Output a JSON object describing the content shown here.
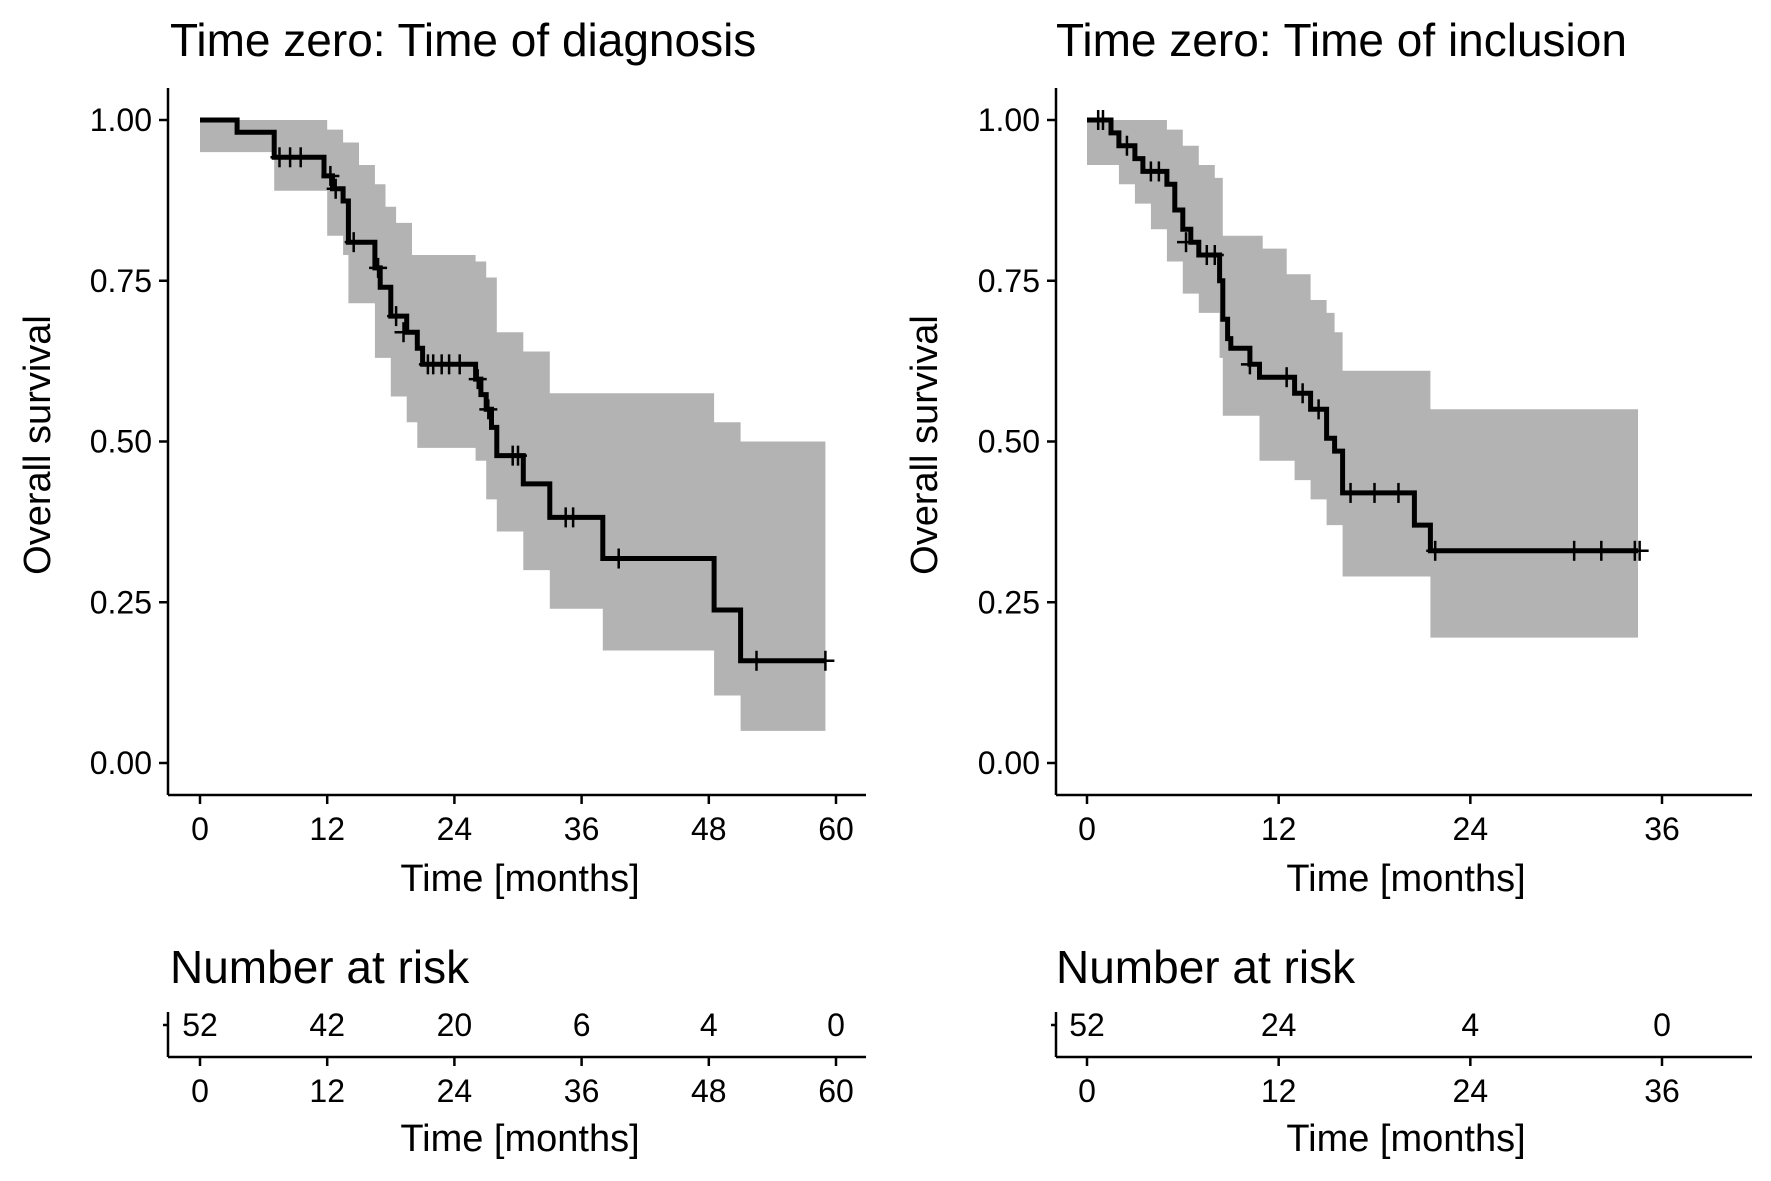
{
  "chart_data": [
    {
      "type": "line",
      "subtype": "kaplan-meier",
      "title": "Time zero: Time of diagnosis",
      "xlabel": "Time [months]",
      "ylabel": "Overall survival",
      "xlim": [
        0,
        62
      ],
      "ylim": [
        0,
        1.0
      ],
      "xticks": [
        0,
        12,
        24,
        36,
        48,
        60
      ],
      "yticks": [
        "0.00",
        "0.25",
        "0.50",
        "0.75",
        "1.00"
      ],
      "grid": false,
      "colors": {
        "line": "#000000",
        "ci": "#b3b3b3"
      },
      "steps": [
        [
          0,
          1.0
        ],
        [
          3.5,
          0.981
        ],
        [
          7,
          0.942
        ],
        [
          11.7,
          0.913
        ],
        [
          12.5,
          0.893
        ],
        [
          13.5,
          0.874
        ],
        [
          14,
          0.81
        ],
        [
          16.5,
          0.77
        ],
        [
          17,
          0.74
        ],
        [
          18,
          0.695
        ],
        [
          19.5,
          0.67
        ],
        [
          20.5,
          0.645
        ],
        [
          21,
          0.62
        ],
        [
          26,
          0.597
        ],
        [
          26.5,
          0.573
        ],
        [
          27,
          0.55
        ],
        [
          27.5,
          0.522
        ],
        [
          28,
          0.478
        ],
        [
          30.5,
          0.434
        ],
        [
          33,
          0.382
        ],
        [
          38,
          0.318
        ],
        [
          48.5,
          0.238
        ],
        [
          51,
          0.159
        ],
        [
          59,
          0.159
        ]
      ],
      "ci_upper": [
        [
          0,
          1.0
        ],
        [
          7,
          1.0
        ],
        [
          12,
          0.985
        ],
        [
          13.5,
          0.965
        ],
        [
          15,
          0.93
        ],
        [
          16.5,
          0.9
        ],
        [
          17.5,
          0.865
        ],
        [
          18.5,
          0.84
        ],
        [
          20,
          0.79
        ],
        [
          26,
          0.78
        ],
        [
          27,
          0.755
        ],
        [
          28,
          0.67
        ],
        [
          30.5,
          0.64
        ],
        [
          33,
          0.575
        ],
        [
          38,
          0.575
        ],
        [
          48.5,
          0.53
        ],
        [
          51,
          0.5
        ],
        [
          59,
          0.5
        ]
      ],
      "ci_lower": [
        [
          0,
          0.95
        ],
        [
          7,
          0.89
        ],
        [
          12,
          0.82
        ],
        [
          13.5,
          0.79
        ],
        [
          14,
          0.715
        ],
        [
          16.5,
          0.63
        ],
        [
          18,
          0.57
        ],
        [
          19.5,
          0.53
        ],
        [
          20.5,
          0.49
        ],
        [
          26,
          0.47
        ],
        [
          27,
          0.41
        ],
        [
          28,
          0.36
        ],
        [
          30.5,
          0.3
        ],
        [
          33,
          0.24
        ],
        [
          38,
          0.175
        ],
        [
          48.5,
          0.105
        ],
        [
          51,
          0.05
        ],
        [
          59,
          0.05
        ]
      ],
      "censored": [
        [
          7.5,
          0.942
        ],
        [
          8.5,
          0.942
        ],
        [
          9.5,
          0.942
        ],
        [
          12.3,
          0.913
        ],
        [
          12.8,
          0.893
        ],
        [
          14.5,
          0.81
        ],
        [
          16.8,
          0.77
        ],
        [
          18.5,
          0.695
        ],
        [
          19.2,
          0.67
        ],
        [
          21.5,
          0.62
        ],
        [
          22,
          0.62
        ],
        [
          22.8,
          0.62
        ],
        [
          23.5,
          0.62
        ],
        [
          24.5,
          0.62
        ],
        [
          26.2,
          0.597
        ],
        [
          27.2,
          0.55
        ],
        [
          29.5,
          0.478
        ],
        [
          30,
          0.478
        ],
        [
          34.5,
          0.382
        ],
        [
          35.2,
          0.382
        ],
        [
          39.5,
          0.318
        ],
        [
          52.5,
          0.159
        ],
        [
          59,
          0.159
        ]
      ],
      "risk_table": {
        "title": "Number at risk",
        "times": [
          0,
          12,
          24,
          36,
          48,
          60
        ],
        "counts": [
          "52",
          "42",
          "20",
          "6",
          "4",
          "0"
        ]
      }
    },
    {
      "type": "line",
      "subtype": "kaplan-meier",
      "title": "Time zero: Time of inclusion",
      "xlabel": "Time [months]",
      "ylabel": "Overall survival",
      "xlim": [
        0,
        41
      ],
      "ylim": [
        0,
        1.0
      ],
      "xticks": [
        0,
        12,
        24,
        36
      ],
      "yticks": [
        "0.00",
        "0.25",
        "0.50",
        "0.75",
        "1.00"
      ],
      "grid": false,
      "colors": {
        "line": "#000000",
        "ci": "#b3b3b3"
      },
      "steps": [
        [
          0,
          1.0
        ],
        [
          1.5,
          0.98
        ],
        [
          2,
          0.96
        ],
        [
          3,
          0.94
        ],
        [
          3.5,
          0.92
        ],
        [
          5,
          0.9
        ],
        [
          5.5,
          0.86
        ],
        [
          6,
          0.83
        ],
        [
          6.5,
          0.81
        ],
        [
          7,
          0.79
        ],
        [
          8.3,
          0.75
        ],
        [
          8.5,
          0.69
        ],
        [
          8.8,
          0.66
        ],
        [
          9,
          0.645
        ],
        [
          10.2,
          0.62
        ],
        [
          10.8,
          0.6
        ],
        [
          13,
          0.575
        ],
        [
          14,
          0.55
        ],
        [
          15,
          0.505
        ],
        [
          15.5,
          0.485
        ],
        [
          16,
          0.42
        ],
        [
          20.5,
          0.37
        ],
        [
          21.5,
          0.33
        ],
        [
          34.5,
          0.33
        ]
      ],
      "ci_upper": [
        [
          0,
          1.0
        ],
        [
          4,
          1.0
        ],
        [
          5,
          0.985
        ],
        [
          6,
          0.96
        ],
        [
          7,
          0.93
        ],
        [
          8,
          0.91
        ],
        [
          8.5,
          0.82
        ],
        [
          11,
          0.8
        ],
        [
          12.5,
          0.76
        ],
        [
          14,
          0.72
        ],
        [
          15,
          0.7
        ],
        [
          15.5,
          0.67
        ],
        [
          16,
          0.61
        ],
        [
          21.5,
          0.55
        ],
        [
          34.5,
          0.55
        ]
      ],
      "ci_lower": [
        [
          0,
          0.93
        ],
        [
          2,
          0.9
        ],
        [
          3,
          0.87
        ],
        [
          4,
          0.83
        ],
        [
          5,
          0.78
        ],
        [
          6,
          0.73
        ],
        [
          7,
          0.7
        ],
        [
          8.3,
          0.63
        ],
        [
          8.5,
          0.54
        ],
        [
          10.8,
          0.47
        ],
        [
          13,
          0.44
        ],
        [
          14,
          0.41
        ],
        [
          15,
          0.37
        ],
        [
          16,
          0.29
        ],
        [
          21.5,
          0.195
        ],
        [
          34.5,
          0.195
        ]
      ],
      "censored": [
        [
          0.7,
          1.0
        ],
        [
          1,
          1.0
        ],
        [
          2.5,
          0.96
        ],
        [
          4,
          0.92
        ],
        [
          4.5,
          0.92
        ],
        [
          6.2,
          0.81
        ],
        [
          7.5,
          0.79
        ],
        [
          8,
          0.79
        ],
        [
          10.2,
          0.62
        ],
        [
          12.5,
          0.6
        ],
        [
          13.5,
          0.575
        ],
        [
          14.5,
          0.55
        ],
        [
          16.5,
          0.42
        ],
        [
          18,
          0.42
        ],
        [
          19.5,
          0.42
        ],
        [
          21.8,
          0.33
        ],
        [
          30.5,
          0.33
        ],
        [
          32.2,
          0.33
        ],
        [
          34.3,
          0.33
        ],
        [
          34.6,
          0.33
        ]
      ],
      "risk_table": {
        "title": "Number at risk",
        "times": [
          0,
          12,
          24,
          36
        ],
        "counts": [
          "52",
          "24",
          "4",
          "0"
        ]
      }
    }
  ]
}
